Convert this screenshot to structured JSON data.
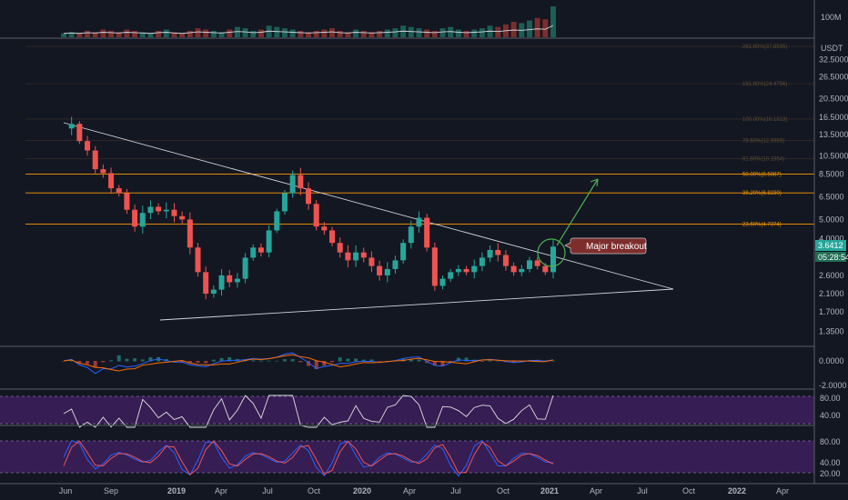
{
  "chart_data": {
    "type": "candlestick",
    "time_axis": {
      "ticks": [
        "Jun",
        "Sep",
        "2019",
        "Apr",
        "Jul",
        "Oct",
        "2020",
        "Apr",
        "Jul",
        "Oct",
        "2021",
        "Apr",
        "Jul",
        "Oct",
        "2022",
        "Apr"
      ],
      "bold_ticks": [
        "2019",
        "2020",
        "2021",
        "2022"
      ]
    },
    "price_axis": {
      "scale": "log",
      "currency": "USDT",
      "ticks": [
        "32.5000",
        "26.5000",
        "20.5000",
        "16.5000",
        "13.5000",
        "10.5000",
        "8.5000",
        "6.5000",
        "5.0000",
        "4.0000",
        "2.6000",
        "2.1000",
        "1.7000",
        "1.3500"
      ],
      "range": [
        1.2,
        42
      ]
    },
    "last_price": "3.6412",
    "countdown": "05:28:54",
    "price_path": [
      [
        0,
        14.5
      ],
      [
        1,
        15.3
      ],
      [
        2,
        12.5
      ],
      [
        3,
        11.2
      ],
      [
        4,
        9.0
      ],
      [
        5,
        8.6
      ],
      [
        6,
        7.2
      ],
      [
        7,
        6.8
      ],
      [
        8,
        5.6
      ],
      [
        9,
        4.6
      ],
      [
        10,
        5.4
      ],
      [
        11,
        5.8
      ],
      [
        12,
        5.5
      ],
      [
        13,
        5.6
      ],
      [
        14,
        5.2
      ],
      [
        15,
        5.0
      ],
      [
        16,
        3.6
      ],
      [
        17,
        2.7
      ],
      [
        18,
        2.1
      ],
      [
        19,
        2.2
      ],
      [
        20,
        2.6
      ],
      [
        21,
        2.4
      ],
      [
        22,
        2.5
      ],
      [
        23,
        3.2
      ],
      [
        24,
        3.6
      ],
      [
        25,
        3.4
      ],
      [
        26,
        4.4
      ],
      [
        27,
        5.5
      ],
      [
        28,
        6.8
      ],
      [
        29,
        8.4
      ],
      [
        30,
        7.2
      ],
      [
        31,
        6.0
      ],
      [
        32,
        4.6
      ],
      [
        33,
        4.4
      ],
      [
        34,
        3.8
      ],
      [
        35,
        3.4
      ],
      [
        36,
        3.1
      ],
      [
        37,
        3.4
      ],
      [
        38,
        3.2
      ],
      [
        39,
        2.9
      ],
      [
        40,
        2.6
      ],
      [
        41,
        2.8
      ],
      [
        42,
        3.1
      ],
      [
        43,
        3.8
      ],
      [
        44,
        4.6
      ],
      [
        45,
        5.1
      ],
      [
        46,
        3.6
      ],
      [
        47,
        2.3
      ],
      [
        48,
        2.5
      ],
      [
        49,
        2.7
      ],
      [
        50,
        2.8
      ],
      [
        51,
        2.7
      ],
      [
        52,
        2.9
      ],
      [
        53,
        3.2
      ],
      [
        54,
        3.5
      ],
      [
        55,
        3.3
      ],
      [
        56,
        2.9
      ],
      [
        57,
        2.7
      ],
      [
        58,
        2.8
      ],
      [
        59,
        3.1
      ],
      [
        60,
        2.9
      ],
      [
        61,
        2.7
      ],
      [
        62,
        3.64
      ]
    ],
    "volume": [
      3,
      4,
      3,
      5,
      4,
      6,
      5,
      4,
      6,
      5,
      4,
      3,
      5,
      6,
      4,
      3,
      5,
      7,
      6,
      5,
      4,
      6,
      8,
      7,
      5,
      6,
      9,
      8,
      7,
      6,
      5,
      4,
      5,
      6,
      7,
      5,
      4,
      6,
      5,
      4,
      5,
      6,
      7,
      9,
      8,
      7,
      6,
      5,
      7,
      8,
      6,
      5,
      6,
      7,
      9,
      8,
      10,
      12,
      11,
      13,
      15,
      14,
      24
    ],
    "volume_axis_label": "100M",
    "fib_levels": [
      {
        "label": "23.60%(4.7374)",
        "price": 4.7374,
        "bright": true
      },
      {
        "label": "38.20%(6.8230)",
        "price": 6.823,
        "bright": true
      },
      {
        "label": "50.00%(8.5087)",
        "price": 8.5087,
        "bright": true
      },
      {
        "label": "61.80%(10.1954)",
        "price": 10.1954,
        "bright": false
      },
      {
        "label": "78.60%(12.5959)",
        "price": 12.5959,
        "bright": false
      },
      {
        "label": "100.00%(16.1813)",
        "price": 16.1813,
        "bright": false
      },
      {
        "label": "161.80%(24.4756)",
        "price": 24.4756,
        "bright": false
      },
      {
        "label": "261.80%(37.8595)",
        "price": 37.8595,
        "bright": false
      },
      {
        "label": "423.60%(59.5163)",
        "price": 59.5163,
        "bright": false
      }
    ],
    "annotation": "Major breakout",
    "macd_axis": [
      "0.0000",
      "-2.0000"
    ],
    "rsi_axis": [
      "80.00",
      "40.00"
    ],
    "stoch_axis": [
      "80.00",
      "40.00",
      "20.00"
    ],
    "colors": {
      "up": "#26a69a",
      "down": "#ef5350",
      "fib": "#ff9800",
      "accent_green": "#4caf50",
      "callout_red": "#8b2a2a",
      "band_purple": "#3d1f5c"
    }
  }
}
